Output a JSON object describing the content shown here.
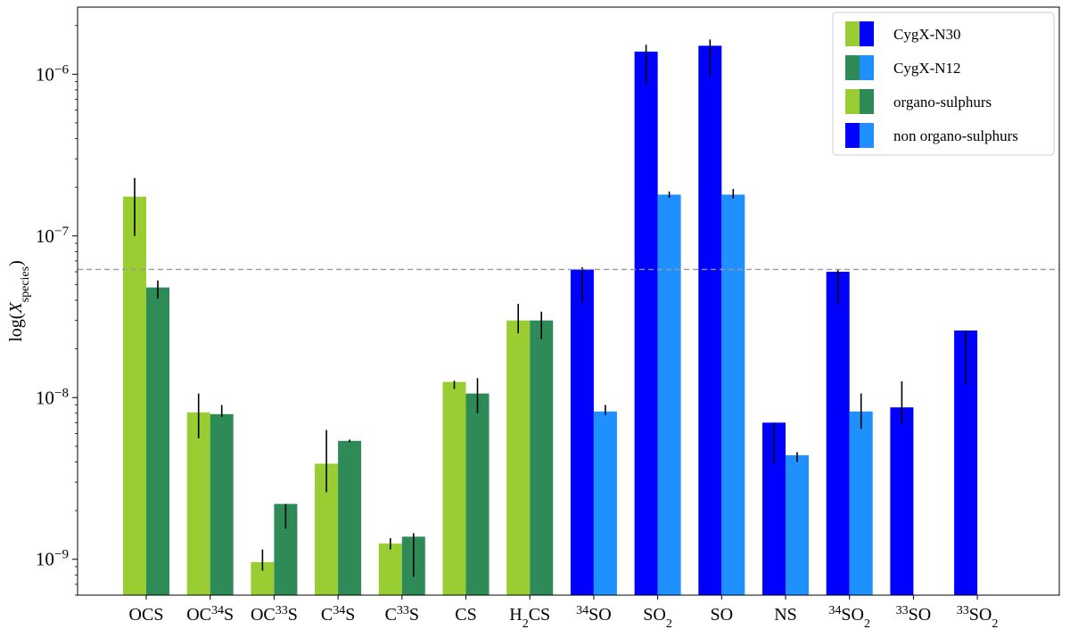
{
  "chart_data": {
    "type": "bar",
    "yscale": "log",
    "ylim": [
      6e-10,
      2.6e-06
    ],
    "ylabel": {
      "prefix": "log(",
      "symbol": "X",
      "sub": "species",
      "suffix": ")"
    },
    "yticks": [
      {
        "value": 1e-09,
        "base": "10",
        "exp": "−9"
      },
      {
        "value": 1e-08,
        "base": "10",
        "exp": "−8"
      },
      {
        "value": 1e-07,
        "base": "10",
        "exp": "−7"
      },
      {
        "value": 1e-06,
        "base": "10",
        "exp": "−6"
      }
    ],
    "reference_line": {
      "value": 6.2e-08,
      "style": "dashed",
      "color": "#999999"
    },
    "categories": [
      {
        "parts": [
          {
            "t": "OCS"
          }
        ]
      },
      {
        "parts": [
          {
            "t": "OC"
          },
          {
            "t": "34",
            "sup": true
          },
          {
            "t": "S"
          }
        ]
      },
      {
        "parts": [
          {
            "t": "OC"
          },
          {
            "t": "33",
            "sup": true
          },
          {
            "t": "S"
          }
        ]
      },
      {
        "parts": [
          {
            "t": "C"
          },
          {
            "t": "34",
            "sup": true
          },
          {
            "t": "S"
          }
        ]
      },
      {
        "parts": [
          {
            "t": "C"
          },
          {
            "t": "33",
            "sup": true
          },
          {
            "t": "S"
          }
        ]
      },
      {
        "parts": [
          {
            "t": "CS"
          }
        ]
      },
      {
        "parts": [
          {
            "t": "H"
          },
          {
            "t": "2",
            "sub": true
          },
          {
            "t": "CS"
          }
        ]
      },
      {
        "parts": [
          {
            "t": "34",
            "sup": true
          },
          {
            "t": "SO"
          }
        ]
      },
      {
        "parts": [
          {
            "t": "SO"
          },
          {
            "t": "2",
            "sub": true
          }
        ]
      },
      {
        "parts": [
          {
            "t": "SO"
          }
        ]
      },
      {
        "parts": [
          {
            "t": "NS"
          }
        ]
      },
      {
        "parts": [
          {
            "t": "34",
            "sup": true
          },
          {
            "t": "SO"
          },
          {
            "t": "2",
            "sub": true
          }
        ]
      },
      {
        "parts": [
          {
            "t": "33",
            "sup": true
          },
          {
            "t": "SO"
          }
        ]
      },
      {
        "parts": [
          {
            "t": "33",
            "sup": true
          },
          {
            "t": "SO"
          },
          {
            "t": "2",
            "sub": true
          }
        ]
      }
    ],
    "category_group": [
      "organo-sulphurs",
      "organo-sulphurs",
      "organo-sulphurs",
      "organo-sulphurs",
      "organo-sulphurs",
      "organo-sulphurs",
      "organo-sulphurs",
      "non organo-sulphurs",
      "non organo-sulphurs",
      "non organo-sulphurs",
      "non organo-sulphurs",
      "non organo-sulphurs",
      "non organo-sulphurs",
      "non organo-sulphurs"
    ],
    "colors": {
      "organo-sulphurs": {
        "CygX-N30": "#9ACD32",
        "CygX-N12": "#2E8B57"
      },
      "non organo-sulphurs": {
        "CygX-N30": "#0000FF",
        "CygX-N12": "#1E90FF"
      }
    },
    "series": [
      {
        "name": "CygX-N30",
        "values": [
          1.75e-07,
          8.1e-09,
          9.6e-10,
          3.9e-09,
          1.25e-09,
          1.25e-08,
          3e-08,
          6.2e-08,
          1.38e-06,
          1.5e-06,
          7e-09,
          6e-08,
          8.7e-09,
          2.6e-08
        ],
        "err_low": [
          1e-07,
          5.6e-09,
          8.5e-10,
          2.6e-09,
          1.15e-09,
          1.13e-08,
          2.5e-08,
          3.9e-08,
          8.7e-07,
          9.7e-07,
          3.9e-09,
          3.8e-08,
          6.9e-09,
          1.2e-08
        ],
        "err_high": [
          2.28e-07,
          1.06e-08,
          1.15e-09,
          6.3e-09,
          1.35e-09,
          1.27e-08,
          3.8e-08,
          6.4e-08,
          1.52e-06,
          1.64e-06,
          7e-09,
          6.2e-08,
          1.26e-08,
          2.6e-08
        ]
      },
      {
        "name": "CygX-N12",
        "values": [
          4.8e-08,
          7.9e-09,
          2.2e-09,
          5.4e-09,
          1.38e-09,
          1.06e-08,
          3e-08,
          8.2e-09,
          1.8e-07,
          1.8e-07,
          4.4e-09,
          8.2e-09,
          null,
          null
        ],
        "err_low": [
          4.1e-08,
          7.6e-09,
          1.55e-09,
          5.3e-09,
          7.8e-10,
          8e-09,
          2.3e-08,
          7.8e-09,
          1.72e-07,
          1.7e-07,
          4e-09,
          6.4e-09,
          null,
          null
        ],
        "err_high": [
          5.3e-08,
          9e-09,
          2.2e-09,
          5.5e-09,
          1.45e-09,
          1.32e-08,
          3.4e-08,
          9e-09,
          1.88e-07,
          1.95e-07,
          4.6e-09,
          1.06e-08,
          null,
          null
        ]
      }
    ],
    "legend": {
      "position": "top-right",
      "entries": [
        {
          "label": "CygX-N30",
          "colors": [
            "#9ACD32",
            "#0000FF"
          ]
        },
        {
          "label": "CygX-N12",
          "colors": [
            "#2E8B57",
            "#1E90FF"
          ]
        },
        {
          "label": "organo-sulphurs",
          "colors": [
            "#9ACD32",
            "#2E8B57"
          ]
        },
        {
          "label": "non organo-sulphurs",
          "colors": [
            "#0000FF",
            "#1E90FF"
          ]
        }
      ]
    }
  }
}
